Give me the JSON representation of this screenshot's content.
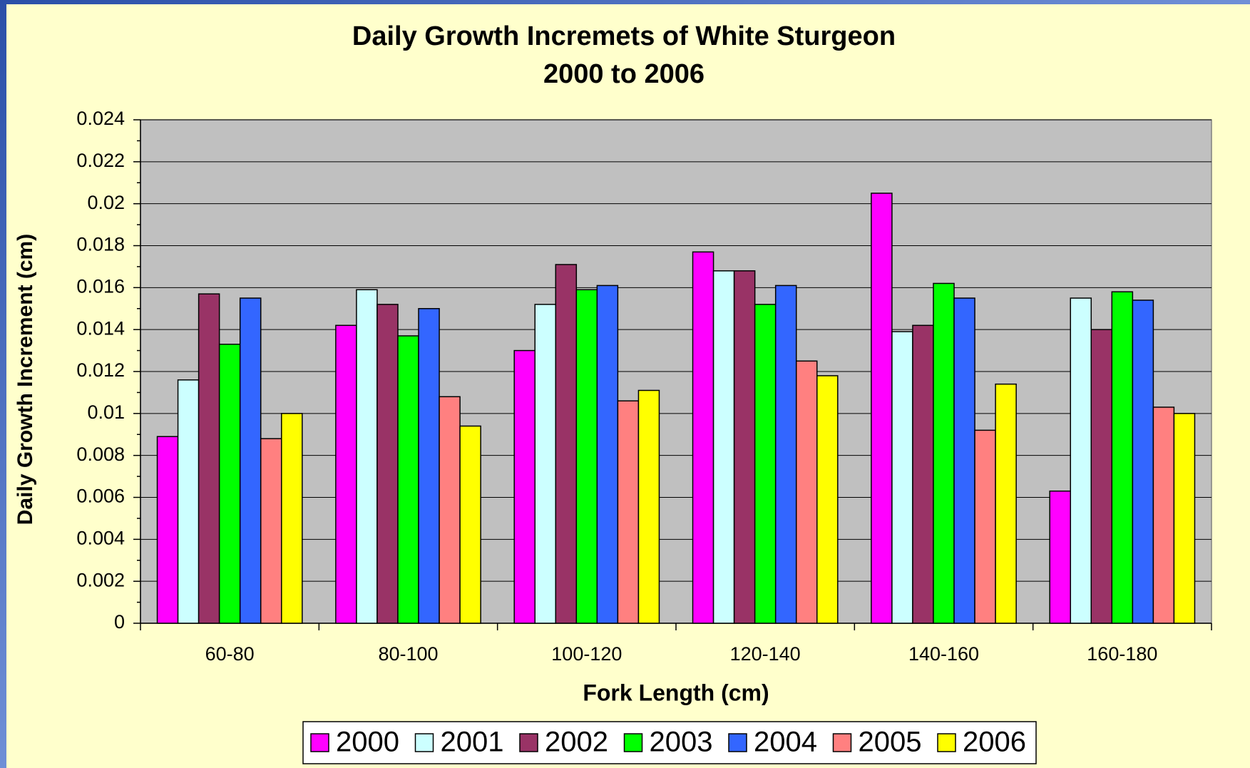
{
  "chart_data": {
    "type": "bar",
    "title": "Daily Growth Incremets of White Sturgeon",
    "subtitle": "2000 to 2006",
    "x_label": "Fork Length (cm)",
    "y_label": "Daily Growth Increment (cm)",
    "categories": [
      "60-80",
      "80-100",
      "100-120",
      "120-140",
      "140-160",
      "160-180"
    ],
    "series": [
      {
        "name": "2000",
        "color": "#ff00ff",
        "values": [
          0.0089,
          0.0142,
          0.013,
          0.0177,
          0.0205,
          0.0063
        ]
      },
      {
        "name": "2001",
        "color": "#ccffff",
        "values": [
          0.0116,
          0.0159,
          0.0152,
          0.0168,
          0.0139,
          0.0155
        ]
      },
      {
        "name": "2002",
        "color": "#993366",
        "values": [
          0.0157,
          0.0152,
          0.0171,
          0.0168,
          0.0142,
          0.014
        ]
      },
      {
        "name": "2003",
        "color": "#00ff00",
        "values": [
          0.0133,
          0.0137,
          0.0159,
          0.0152,
          0.0162,
          0.0158
        ]
      },
      {
        "name": "2004",
        "color": "#3366ff",
        "values": [
          0.0155,
          0.015,
          0.0161,
          0.0161,
          0.0155,
          0.0154
        ]
      },
      {
        "name": "2005",
        "color": "#ff8080",
        "values": [
          0.0088,
          0.0108,
          0.0106,
          0.0125,
          0.0092,
          0.0103
        ]
      },
      {
        "name": "2006",
        "color": "#ffff00",
        "values": [
          0.01,
          0.0094,
          0.0111,
          0.0118,
          0.0114,
          0.01
        ]
      }
    ],
    "ylim": [
      0,
      0.024
    ],
    "yticks": [
      0,
      0.002,
      0.004,
      0.006,
      0.008,
      0.01,
      0.012,
      0.014,
      0.016,
      0.018,
      0.02,
      0.022,
      0.024
    ],
    "grid": true,
    "legend": "bottom"
  }
}
